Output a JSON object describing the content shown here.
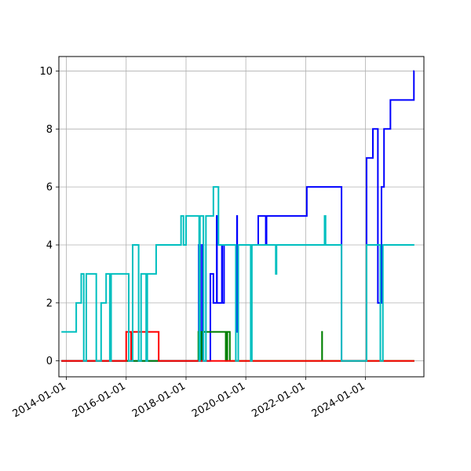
{
  "chart_data": {
    "type": "line",
    "step": "post",
    "title": "",
    "xlabel": "",
    "ylabel": "",
    "x_type": "date",
    "xlim": [
      "2013-10-01",
      "2025-12-15"
    ],
    "ylim": [
      -0.55,
      10.5
    ],
    "x_ticks": [
      "2014-01-01",
      "2016-01-01",
      "2018-01-01",
      "2020-01-01",
      "2022-01-01",
      "2024-01-01"
    ],
    "y_ticks": [
      0,
      2,
      4,
      6,
      8,
      10
    ],
    "grid": true,
    "legend": "none",
    "series": [
      {
        "color": "#0000ff",
        "points": [
          [
            "2013-11-01",
            0
          ],
          [
            "2018-06-05",
            4
          ],
          [
            "2018-06-12",
            0
          ],
          [
            "2018-06-20",
            4
          ],
          [
            "2018-06-28",
            0
          ],
          [
            "2018-07-20",
            4
          ],
          [
            "2018-08-01",
            0
          ],
          [
            "2018-10-25",
            3
          ],
          [
            "2018-12-01",
            2
          ],
          [
            "2019-01-10",
            5
          ],
          [
            "2019-01-14",
            2
          ],
          [
            "2019-03-15",
            4
          ],
          [
            "2019-03-18",
            2
          ],
          [
            "2019-04-10",
            4
          ],
          [
            "2019-09-15",
            5
          ],
          [
            "2019-09-18",
            1
          ],
          [
            "2019-10-01",
            4
          ],
          [
            "2020-06-01",
            5
          ],
          [
            "2020-09-01",
            4
          ],
          [
            "2020-09-10",
            5
          ],
          [
            "2022-01-15",
            6
          ],
          [
            "2023-03-15",
            0
          ],
          [
            "2024-01-15",
            7
          ],
          [
            "2024-04-01",
            8
          ],
          [
            "2024-06-01",
            2
          ],
          [
            "2024-07-15",
            6
          ],
          [
            "2024-08-15",
            8
          ],
          [
            "2024-11-01",
            9
          ],
          [
            "2025-08-15",
            10
          ],
          [
            "2025-08-20",
            10
          ]
        ]
      },
      {
        "color": "#008000",
        "points": [
          [
            "2013-11-01",
            0
          ],
          [
            "2018-06-01",
            1
          ],
          [
            "2018-06-12",
            0
          ],
          [
            "2018-06-20",
            1
          ],
          [
            "2018-06-28",
            0
          ],
          [
            "2018-07-10",
            1
          ],
          [
            "2019-05-01",
            0
          ],
          [
            "2019-05-20",
            1
          ],
          [
            "2019-06-20",
            0
          ],
          [
            "2022-05-01",
            0
          ],
          [
            "2022-07-20",
            1
          ],
          [
            "2022-07-21",
            0
          ],
          [
            "2025-08-20",
            0
          ]
        ]
      },
      {
        "color": "#ff0000",
        "points": [
          [
            "2013-11-01",
            0
          ],
          [
            "2016-01-01",
            1
          ],
          [
            "2016-03-01",
            0
          ],
          [
            "2016-03-10",
            1
          ],
          [
            "2017-02-01",
            0
          ],
          [
            "2025-08-20",
            0
          ]
        ]
      },
      {
        "color": "#00bfbf",
        "points": [
          [
            "2013-11-01",
            1
          ],
          [
            "2014-05-01",
            2
          ],
          [
            "2014-07-01",
            3
          ],
          [
            "2014-08-01",
            0
          ],
          [
            "2014-09-01",
            3
          ],
          [
            "2015-01-01",
            0
          ],
          [
            "2015-03-01",
            2
          ],
          [
            "2015-05-01",
            3
          ],
          [
            "2015-06-15",
            0
          ],
          [
            "2015-07-01",
            3
          ],
          [
            "2016-02-01",
            0
          ],
          [
            "2016-03-20",
            4
          ],
          [
            "2016-06-01",
            0
          ],
          [
            "2016-07-01",
            3
          ],
          [
            "2016-09-01",
            0
          ],
          [
            "2016-09-15",
            3
          ],
          [
            "2017-01-01",
            4
          ],
          [
            "2017-11-01",
            5
          ],
          [
            "2017-12-01",
            4
          ],
          [
            "2018-01-01",
            5
          ],
          [
            "2018-06-10",
            0
          ],
          [
            "2018-06-20",
            5
          ],
          [
            "2018-08-01",
            0
          ],
          [
            "2018-09-01",
            5
          ],
          [
            "2018-12-01",
            6
          ],
          [
            "2019-02-01",
            4
          ],
          [
            "2019-07-01",
            4
          ],
          [
            "2019-09-01",
            0
          ],
          [
            "2019-10-01",
            4
          ],
          [
            "2020-03-01",
            0
          ],
          [
            "2020-03-15",
            4
          ],
          [
            "2021-01-01",
            3
          ],
          [
            "2021-01-10",
            4
          ],
          [
            "2022-08-20",
            5
          ],
          [
            "2022-09-01",
            4
          ],
          [
            "2023-03-15",
            0
          ],
          [
            "2024-01-15",
            4
          ],
          [
            "2024-07-01",
            0
          ],
          [
            "2024-08-01",
            4
          ],
          [
            "2025-08-20",
            4
          ]
        ]
      }
    ]
  }
}
